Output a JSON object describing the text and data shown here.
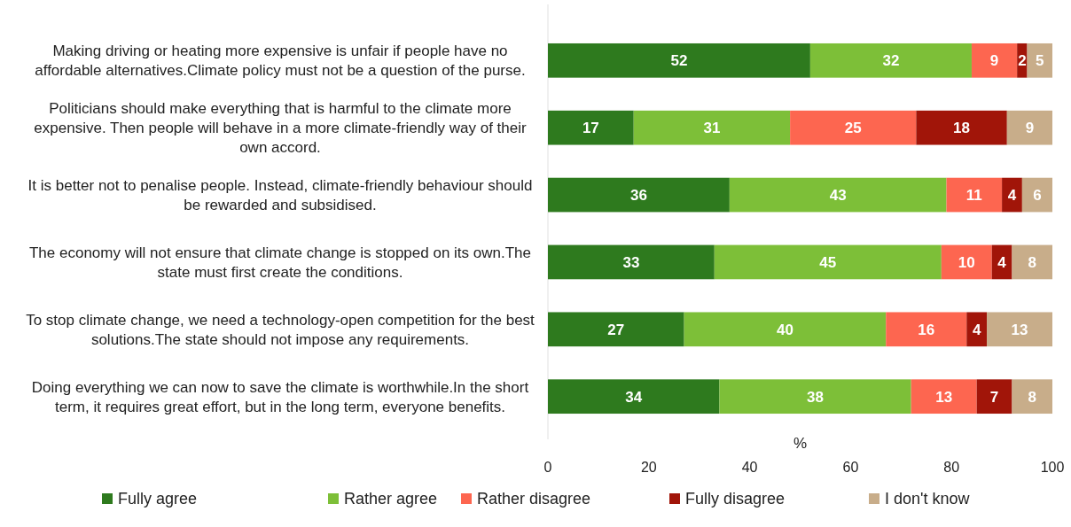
{
  "chart_data": {
    "type": "bar",
    "orientation": "horizontal",
    "stacked": true,
    "data_labels": true,
    "legend": "bottom",
    "grid": false,
    "xlabel": "%",
    "xlim": [
      0,
      100
    ],
    "xticks": [
      0,
      20,
      40,
      60,
      80,
      100
    ],
    "categories": [
      "Making driving or heating more expensive is unfair if people have no affordable alternatives.Climate policy must not be a question of the purse.",
      "Politicians should make everything that is harmful to the climate more expensive. Then people will behave in a more climate-friendly way of their own accord.",
      "It is better not to penalise people. Instead, climate-friendly behaviour should be rewarded and subsidised.",
      "The economy will not ensure that climate change is stopped on its own.The state must first create the conditions.",
      "To stop climate change, we need a technology-open competition for the best solutions.The state should not impose any requirements.",
      "Doing everything we can now to save the climate is worthwhile.In the short term, it requires great effort, but in the long term, everyone benefits."
    ],
    "series": [
      {
        "name": "Fully agree",
        "color": "#2e7a1e",
        "values": [
          52,
          17,
          36,
          33,
          27,
          34
        ]
      },
      {
        "name": "Rather agree",
        "color": "#7dbf38",
        "values": [
          32,
          31,
          43,
          45,
          40,
          38
        ]
      },
      {
        "name": "Rather disagree",
        "color": "#fd6650",
        "values": [
          9,
          25,
          11,
          10,
          16,
          13
        ]
      },
      {
        "name": "Fully disagree",
        "color": "#a11509",
        "values": [
          2,
          18,
          4,
          4,
          4,
          7
        ]
      },
      {
        "name": "I don't know",
        "color": "#c8ad8a",
        "values": [
          5,
          9,
          6,
          8,
          13,
          8
        ]
      }
    ]
  }
}
